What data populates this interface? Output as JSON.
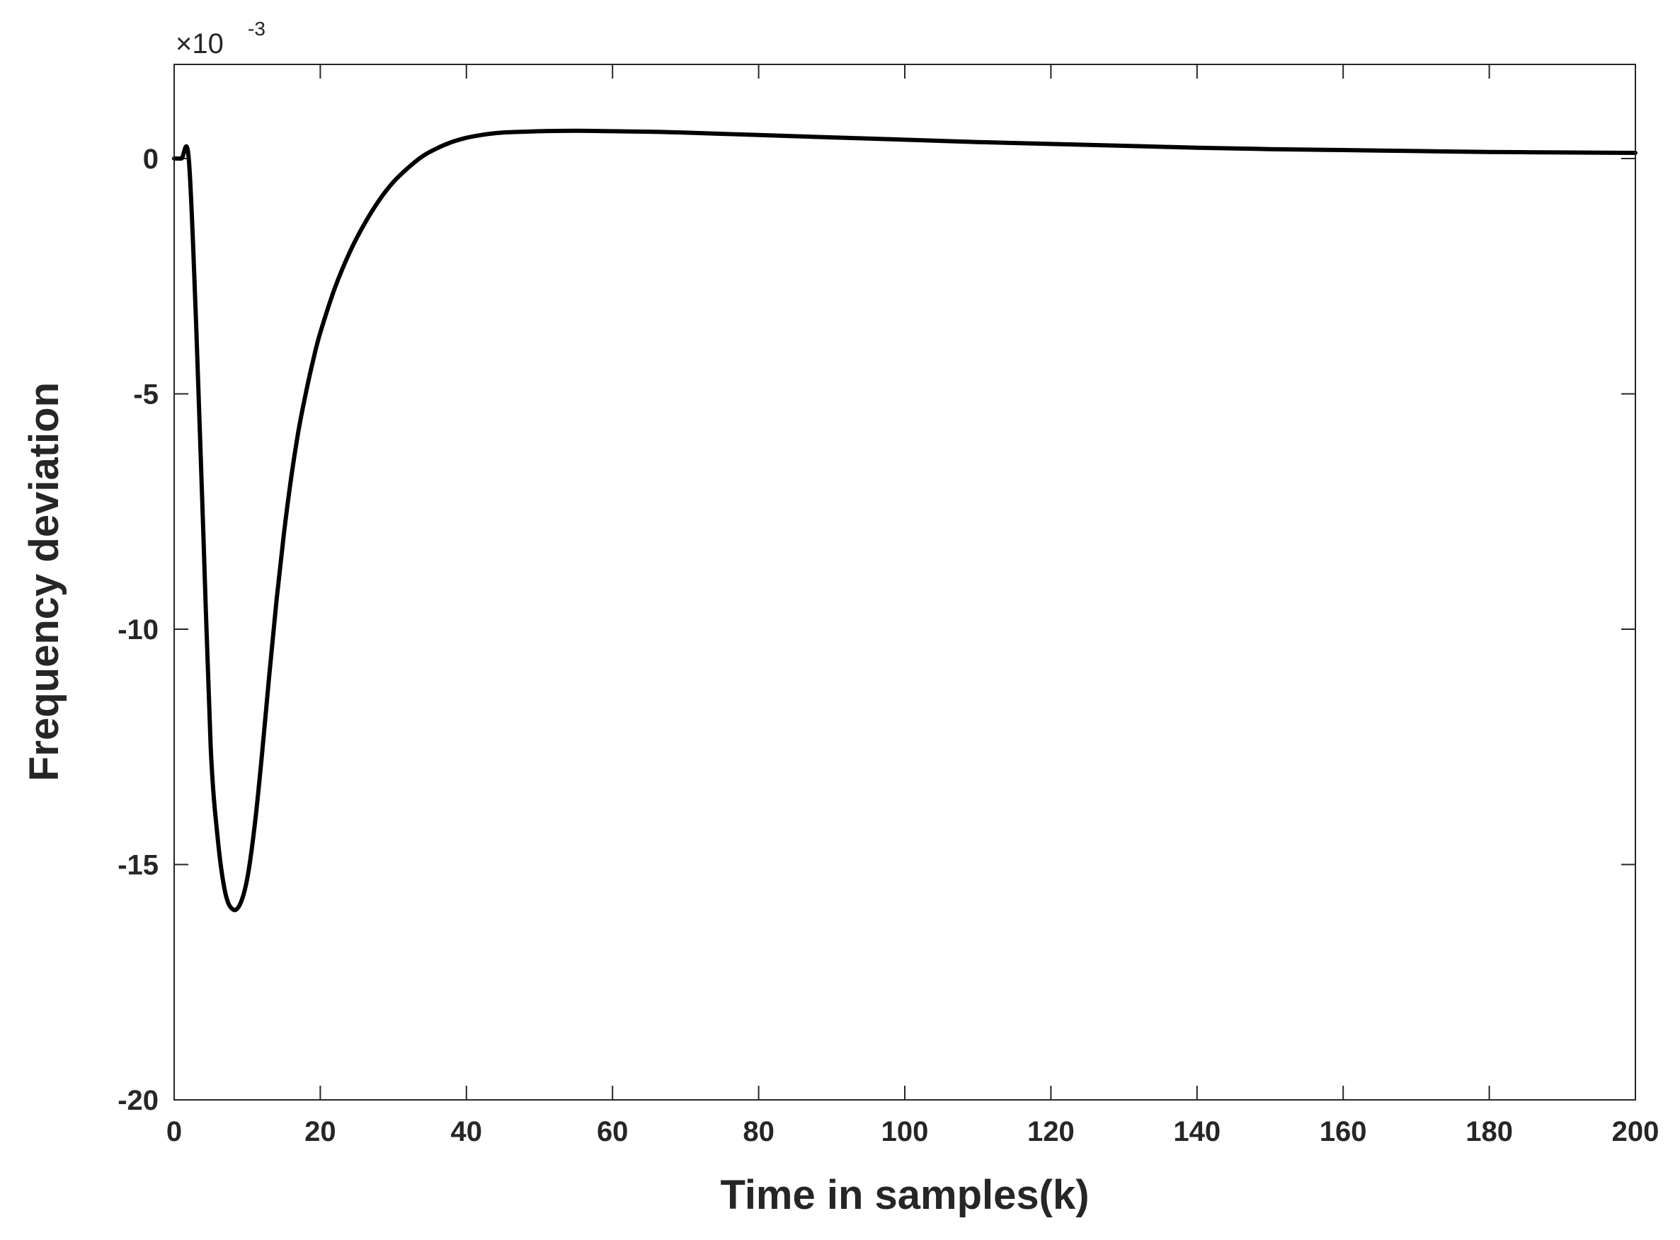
{
  "chart_data": {
    "type": "line",
    "title": "",
    "xlabel": "Time in samples(k)",
    "ylabel": "Frequency deviation",
    "y_exponent_base": "×10",
    "y_exponent_power": "-3",
    "xlim": [
      0,
      200
    ],
    "ylim": [
      -20,
      2
    ],
    "x_ticks": [
      0,
      20,
      40,
      60,
      80,
      100,
      120,
      140,
      160,
      180,
      200
    ],
    "x_tick_labels": [
      "0",
      "20",
      "40",
      "60",
      "80",
      "100",
      "120",
      "140",
      "160",
      "180",
      "200"
    ],
    "y_ticks": [
      0,
      -5,
      -10,
      -15,
      -20
    ],
    "y_tick_labels": [
      "0",
      "-5",
      "-10",
      "-15",
      "-20"
    ],
    "grid": false,
    "line_color": "#000000",
    "series": [
      {
        "x": [
          0,
          1,
          2,
          3,
          4,
          5,
          6,
          7,
          8,
          9,
          10,
          11,
          12,
          13,
          14,
          15,
          16,
          17,
          18,
          19,
          20,
          22,
          24,
          26,
          28,
          30,
          32,
          34,
          36,
          38,
          40,
          42,
          44,
          46,
          48,
          50,
          55,
          60,
          65,
          70,
          80,
          90,
          100,
          110,
          120,
          130,
          140,
          150,
          160,
          170,
          180,
          190,
          200
        ],
        "y": [
          0,
          0,
          0,
          -3.5,
          -8.0,
          -12.5,
          -14.5,
          -15.6,
          -15.95,
          -15.85,
          -15.3,
          -14.2,
          -12.7,
          -11.0,
          -9.4,
          -8.0,
          -6.8,
          -5.8,
          -5.0,
          -4.3,
          -3.7,
          -2.75,
          -2.0,
          -1.4,
          -0.9,
          -0.5,
          -0.2,
          0.05,
          0.22,
          0.35,
          0.44,
          0.5,
          0.54,
          0.56,
          0.57,
          0.58,
          0.59,
          0.58,
          0.57,
          0.55,
          0.5,
          0.45,
          0.4,
          0.35,
          0.31,
          0.27,
          0.23,
          0.2,
          0.18,
          0.16,
          0.14,
          0.13,
          0.12
        ]
      }
    ]
  }
}
